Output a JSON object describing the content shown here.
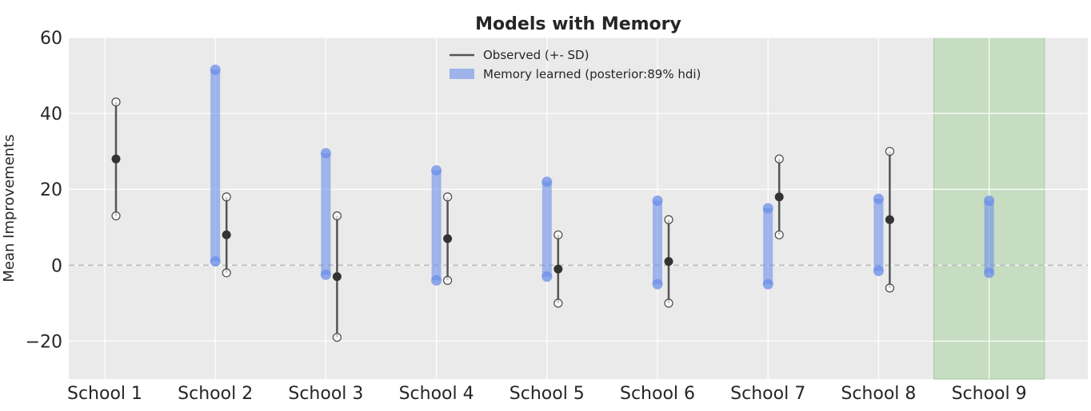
{
  "chart_data": {
    "type": "range",
    "title": "Models with Memory",
    "xlabel": "",
    "ylabel": "Mean Improvements",
    "ylim": [
      -30,
      60
    ],
    "yticks": [
      {
        "value": 60,
        "label": "60"
      },
      {
        "value": 40,
        "label": "40"
      },
      {
        "value": 20,
        "label": "20"
      },
      {
        "value": 0,
        "label": "0"
      },
      {
        "value": -20,
        "label": "−20"
      }
    ],
    "categories": [
      "School 1",
      "School 2",
      "School 3",
      "School 4",
      "School 5",
      "School 6",
      "School 7",
      "School 8",
      "School 9"
    ],
    "observed": [
      {
        "school": "School 1",
        "mean": 28,
        "low": 13,
        "high": 43
      },
      {
        "school": "School 2",
        "mean": 8,
        "low": -2,
        "high": 18
      },
      {
        "school": "School 3",
        "mean": -3,
        "low": -19,
        "high": 13
      },
      {
        "school": "School 4",
        "mean": 7,
        "low": -4,
        "high": 18
      },
      {
        "school": "School 5",
        "mean": -1,
        "low": -10,
        "high": 8
      },
      {
        "school": "School 6",
        "mean": 1,
        "low": -10,
        "high": 12
      },
      {
        "school": "School 7",
        "mean": 18,
        "low": 8,
        "high": 28
      },
      {
        "school": "School 8",
        "mean": 12,
        "low": -6,
        "high": 30
      }
    ],
    "memory_hdi": [
      {
        "school": "School 2",
        "low": 1,
        "high": 51.5
      },
      {
        "school": "School 3",
        "low": -2.5,
        "high": 29.5
      },
      {
        "school": "School 4",
        "low": -4,
        "high": 25
      },
      {
        "school": "School 5",
        "low": -3,
        "high": 22
      },
      {
        "school": "School 6",
        "low": -5,
        "high": 17
      },
      {
        "school": "School 7",
        "low": -5,
        "high": 15
      },
      {
        "school": "School 8",
        "low": -1.5,
        "high": 17.5
      },
      {
        "school": "School 9",
        "low": -2,
        "high": 17
      }
    ],
    "highlighted_category": "School 9",
    "reference_line": 0,
    "legend": {
      "location": "top-center",
      "entries": [
        "Observed (+- SD)",
        "Memory learned (posterior:89% hdi)"
      ]
    },
    "grid": true,
    "colors": {
      "background": "#eaeaea",
      "grid": "#ffffff",
      "observed": "#555555",
      "observed_dot": "#333333",
      "memory": "#6a8ee8",
      "highlight": "#b9d8b4",
      "reference": "#bdbdbd",
      "text": "#262626"
    }
  }
}
